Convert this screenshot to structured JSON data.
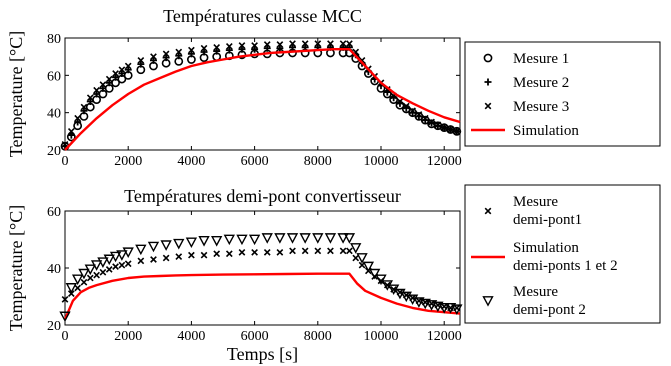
{
  "chart_data": [
    {
      "type": "scatter",
      "title": "Températures culasse MCC",
      "xlabel": "",
      "ylabel": "Temperature [°C]",
      "xlim": [
        0,
        12500
      ],
      "ylim": [
        20,
        80
      ],
      "xticks": [
        0,
        2000,
        4000,
        6000,
        8000,
        10000,
        12000
      ],
      "yticks": [
        20,
        40,
        60,
        80
      ],
      "legend_position": "outside-right",
      "series": [
        {
          "name": "Mesure 1",
          "marker": "circle",
          "x": [
            0,
            200,
            400,
            600,
            800,
            1000,
            1200,
            1400,
            1600,
            1800,
            2000,
            2400,
            2800,
            3200,
            3600,
            4000,
            4400,
            4800,
            5200,
            5600,
            6000,
            6400,
            6800,
            7200,
            7600,
            8000,
            8400,
            8800,
            9000,
            9200,
            9400,
            9600,
            9800,
            10000,
            10200,
            10400,
            10600,
            10800,
            11000,
            11200,
            11400,
            11600,
            11800,
            12000,
            12200,
            12400
          ],
          "y": [
            22,
            27,
            33,
            38,
            43,
            47,
            50,
            53,
            56,
            58,
            60,
            63,
            65,
            66.5,
            67.5,
            68.5,
            69.5,
            70,
            70.5,
            71,
            71.5,
            71.5,
            72,
            72,
            72,
            72,
            72,
            72,
            72,
            69,
            65,
            61,
            57,
            53,
            50,
            47,
            44,
            42,
            40,
            38,
            36,
            34,
            33,
            32,
            31,
            30
          ]
        },
        {
          "name": "Mesure 2",
          "marker": "plus",
          "x": [
            0,
            200,
            400,
            600,
            800,
            1000,
            1200,
            1400,
            1600,
            1800,
            2000,
            2400,
            2800,
            3200,
            3600,
            4000,
            4400,
            4800,
            5200,
            5600,
            6000,
            6400,
            6800,
            7200,
            7600,
            8000,
            8400,
            8800,
            9000,
            9200,
            9400,
            9600,
            9800,
            10000,
            10200,
            10400,
            10600,
            10800,
            11000,
            11200,
            11400,
            11600,
            11800,
            12000,
            12200,
            12400
          ],
          "y": [
            22,
            28,
            35,
            41,
            46,
            50,
            53,
            56,
            59,
            61,
            63,
            66,
            68,
            69.5,
            70.5,
            71.5,
            72.5,
            73,
            73.5,
            74,
            74,
            74.5,
            74.5,
            75,
            75,
            75,
            75,
            75,
            75,
            71,
            66.5,
            62,
            58,
            54.5,
            51,
            48,
            45,
            42.5,
            40,
            38,
            36,
            34.5,
            33,
            32,
            31,
            30
          ]
        },
        {
          "name": "Mesure 3",
          "marker": "x",
          "x": [
            0,
            200,
            400,
            600,
            800,
            1000,
            1200,
            1400,
            1600,
            1800,
            2000,
            2400,
            2800,
            3200,
            3600,
            4000,
            4400,
            4800,
            5200,
            5600,
            6000,
            6400,
            6800,
            7200,
            7600,
            8000,
            8400,
            8800,
            9000,
            9200,
            9400,
            9600,
            9800,
            10000,
            10200,
            10400,
            10600,
            10800,
            11000,
            11200,
            11400,
            11600,
            11800,
            12000,
            12200,
            12400
          ],
          "y": [
            23,
            30,
            37,
            43,
            48,
            52,
            55,
            58,
            61,
            63,
            65,
            68,
            70,
            71.5,
            72.5,
            73.5,
            74.5,
            75,
            75.5,
            76,
            76,
            76.5,
            76.5,
            77,
            77,
            77,
            77,
            77,
            77,
            72.5,
            68,
            63.5,
            59.5,
            56,
            52.5,
            49,
            46,
            43.5,
            41,
            39,
            37,
            35,
            33.5,
            32,
            31,
            30
          ]
        },
        {
          "name": "Simulation",
          "type": "line",
          "color": "#ff0000",
          "x": [
            0,
            500,
            1000,
            1500,
            2000,
            2500,
            3000,
            3500,
            4000,
            4500,
            5000,
            5500,
            6000,
            6500,
            7000,
            7500,
            8000,
            8500,
            9000,
            9500,
            10000,
            10500,
            11000,
            11500,
            12000,
            12500
          ],
          "y": [
            20,
            29,
            37,
            44,
            50,
            55,
            58.5,
            62,
            65,
            67,
            68.5,
            70,
            71,
            72,
            72.5,
            73,
            73.5,
            74,
            74,
            65,
            56,
            49.5,
            45,
            41,
            37.5,
            35
          ]
        }
      ]
    },
    {
      "type": "scatter",
      "title": "Températures demi-pont convertisseur",
      "xlabel": "Temps [s]",
      "ylabel": "Temperature [°C]",
      "xlim": [
        0,
        12500
      ],
      "ylim": [
        20,
        60
      ],
      "xticks": [
        0,
        2000,
        4000,
        6000,
        8000,
        10000,
        12000
      ],
      "yticks": [
        20,
        40,
        60
      ],
      "legend_position": "outside-right",
      "series": [
        {
          "name": "Mesure demi-pont1",
          "name_lines": [
            "Mesure",
            "demi-pont1"
          ],
          "marker": "x",
          "x": [
            0,
            200,
            400,
            600,
            800,
            1000,
            1200,
            1400,
            1600,
            1800,
            2000,
            2400,
            2800,
            3200,
            3600,
            4000,
            4400,
            4800,
            5200,
            5600,
            6000,
            6400,
            6800,
            7200,
            7600,
            8000,
            8400,
            8800,
            9000,
            9200,
            9400,
            9600,
            9800,
            10000,
            10200,
            10400,
            10600,
            10800,
            11000,
            11200,
            11400,
            11600,
            11800,
            12000,
            12200,
            12400
          ],
          "y": [
            29,
            31,
            33,
            35,
            36.5,
            37.5,
            38.5,
            39.5,
            40.5,
            41,
            41.5,
            42.5,
            43,
            43.5,
            44,
            44.5,
            44.5,
            45,
            45,
            45.5,
            45.5,
            45.5,
            45.5,
            46,
            46,
            46,
            46,
            46,
            46,
            43.5,
            41,
            39,
            37,
            35.5,
            34,
            32.5,
            31.5,
            30.5,
            29.5,
            28.5,
            28,
            27.5,
            27,
            26.5,
            26,
            26
          ]
        },
        {
          "name": "Simulation demi-ponts 1 et 2",
          "name_lines": [
            "Simulation",
            "demi-ponts 1 et 2"
          ],
          "type": "line",
          "color": "#ff0000",
          "x": [
            0,
            250,
            500,
            750,
            1000,
            1500,
            2000,
            2500,
            3000,
            3500,
            4000,
            5000,
            6000,
            7000,
            8000,
            9000,
            9250,
            9500,
            10000,
            10500,
            11000,
            11500,
            12000,
            12500
          ],
          "y": [
            22,
            28.5,
            31.5,
            33,
            34,
            35.5,
            36.5,
            37,
            37.2,
            37.4,
            37.5,
            37.7,
            37.8,
            37.9,
            38,
            38,
            34.5,
            32,
            29.5,
            27.5,
            26,
            25,
            24.5,
            24
          ]
        },
        {
          "name": "Mesure demi-pont 2",
          "name_lines": [
            "Mesure",
            "demi-pont 2"
          ],
          "marker": "triangle-down",
          "x": [
            0,
            200,
            400,
            600,
            800,
            1000,
            1200,
            1400,
            1600,
            1800,
            2000,
            2400,
            2800,
            3200,
            3600,
            4000,
            4400,
            4800,
            5200,
            5600,
            6000,
            6400,
            6800,
            7200,
            7600,
            8000,
            8400,
            8800,
            9000,
            9200,
            9400,
            9600,
            9800,
            10000,
            10200,
            10400,
            10600,
            10800,
            11000,
            11200,
            11400,
            11600,
            11800,
            12000,
            12200,
            12400
          ],
          "y": [
            23,
            33,
            36,
            38,
            39.5,
            41,
            42,
            43,
            44,
            44.5,
            45.5,
            46.5,
            47.5,
            48,
            48.5,
            49,
            49.5,
            49.5,
            50,
            50,
            50,
            50.5,
            50.5,
            50.5,
            50.5,
            50.5,
            50.5,
            50.5,
            50.5,
            47,
            43.5,
            40.5,
            38,
            36,
            34,
            32.5,
            31,
            30,
            29,
            28,
            27.5,
            27,
            26.5,
            26,
            26,
            25.5
          ]
        }
      ]
    }
  ]
}
